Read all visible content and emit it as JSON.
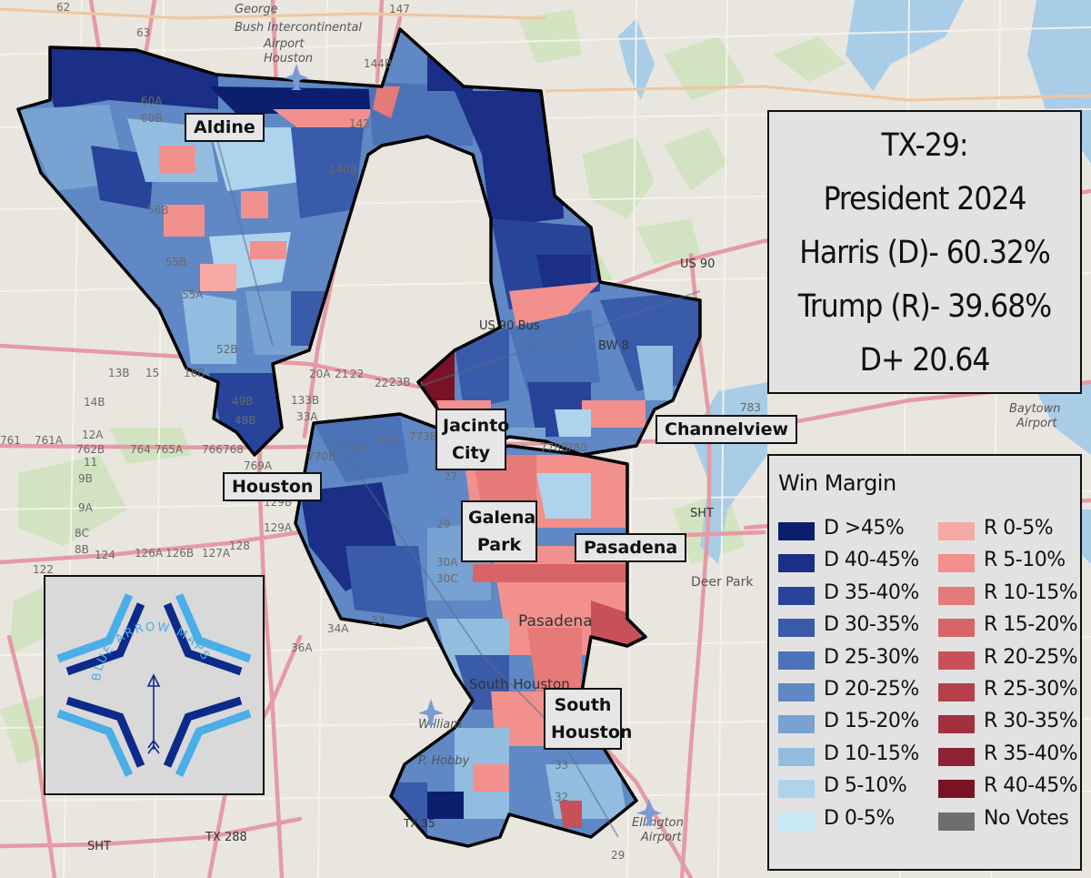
{
  "title": {
    "line1": "TX-29:",
    "line2": "President 2024",
    "line3": "Harris (D)- 60.32%",
    "line4": "Trump (R)- 39.68%",
    "line5": "D+ 20.64"
  },
  "places": {
    "aldine": "Aldine",
    "houston": "Houston",
    "jacinto_city": "Jacinto City",
    "channelview": "Channelview",
    "galena_park": "Galena Park",
    "pasadena": "Pasadena",
    "south_houston": "South Houston"
  },
  "legend": {
    "title": "Win Margin",
    "dem": [
      {
        "label": "D >45%",
        "color": "#0c1f6e"
      },
      {
        "label": "D 40-45%",
        "color": "#1a2f85"
      },
      {
        "label": "D 35-40%",
        "color": "#28449a"
      },
      {
        "label": "D 30-35%",
        "color": "#3a5aaa"
      },
      {
        "label": "D 25-30%",
        "color": "#4c72b8"
      },
      {
        "label": "D 20-25%",
        "color": "#5f88c4"
      },
      {
        "label": "D 15-20%",
        "color": "#78a2d2"
      },
      {
        "label": "D 10-15%",
        "color": "#92bde0"
      },
      {
        "label": "D 5-10%",
        "color": "#aed4ed"
      },
      {
        "label": "D 0-5%",
        "color": "#c9ebf8"
      }
    ],
    "rep": [
      {
        "label": "R 0-5%",
        "color": "#f7a9a5"
      },
      {
        "label": "R 5-10%",
        "color": "#f1908c"
      },
      {
        "label": "R 10-15%",
        "color": "#e67a79"
      },
      {
        "label": "R 15-20%",
        "color": "#d96467"
      },
      {
        "label": "R 20-25%",
        "color": "#c85058"
      },
      {
        "label": "R 25-30%",
        "color": "#b53f4b"
      },
      {
        "label": "R 30-35%",
        "color": "#a3303f"
      },
      {
        "label": "R 35-40%",
        "color": "#8f2133"
      },
      {
        "label": "R 40-45%",
        "color": "#7a1226"
      },
      {
        "label": "No Votes",
        "color": "#6e6e6e"
      }
    ]
  },
  "logo": {
    "text": "BLUE ARROW MAPS",
    "colors": {
      "dark": "#0c2a8a",
      "light": "#4aaee8"
    }
  },
  "basemap": {
    "roads": [
      "US 90",
      "US 90 Bus",
      "BW 8",
      "SHT",
      "TX 288",
      "TX 35"
    ],
    "places": [
      "George Bush Intercontinental Airport Houston",
      "Baytown Airport",
      "Deer Park",
      "Ellington Airport",
      "William P. Hobby Airport",
      "Pasadena",
      "South Houston"
    ],
    "exits": [
      "62",
      "63",
      "147",
      "144B",
      "60A",
      "60B",
      "142",
      "140B",
      "56B",
      "55B",
      "55A",
      "52B",
      "49B",
      "48B",
      "13B",
      "15",
      "16B",
      "20A",
      "21",
      "22",
      "23B",
      "33A",
      "133B",
      "761A",
      "762B",
      "764",
      "765A",
      "766",
      "769A",
      "770B",
      "771B",
      "772",
      "773B",
      "778B",
      "780",
      "783",
      "129B",
      "129A",
      "126A",
      "126B",
      "127A",
      "128",
      "124",
      "122",
      "8C",
      "8B",
      "9A",
      "9B",
      "11",
      "12A",
      "14B",
      "30A",
      "30C",
      "33",
      "34A",
      "36A",
      "29"
    ],
    "colors": {
      "land": "#e9e6df",
      "water": "#a9cde6",
      "park": "#cfe3bd",
      "major_road": "#e59aa4",
      "minor_road": "#f4f1ea",
      "district_outline": "#000000"
    }
  }
}
